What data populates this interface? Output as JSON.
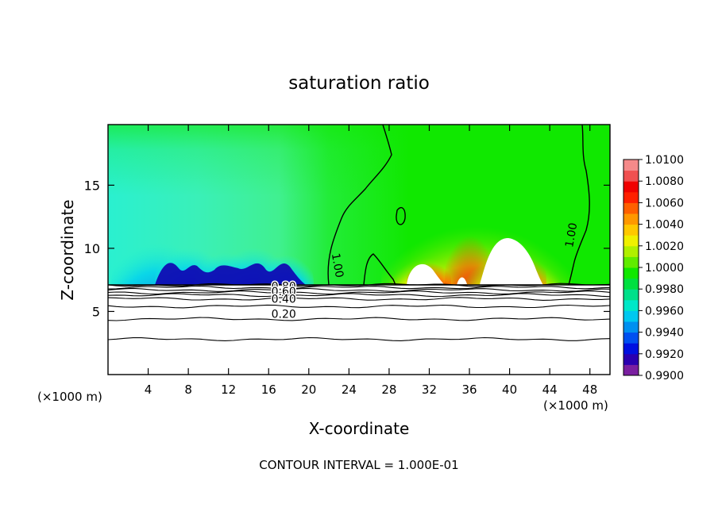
{
  "chart_data": {
    "type": "heatmap",
    "title": "saturation ratio",
    "xlabel": "X-coordinate",
    "ylabel": "Z-coordinate",
    "x_unit_left": "(×1000 m)",
    "x_unit_right": "(×1000 m)",
    "footer": "CONTOUR INTERVAL = 1.000E-01",
    "xlim": [
      0,
      50
    ],
    "ylim": [
      0,
      19.8
    ],
    "x_ticks": [
      4,
      8,
      12,
      16,
      20,
      24,
      28,
      32,
      36,
      40,
      44,
      48
    ],
    "y_ticks": [
      5,
      10,
      15
    ],
    "colorbar": {
      "range": [
        0.99,
        1.01
      ],
      "ticks": [
        "1.0100",
        "1.0080",
        "1.0060",
        "1.0040",
        "1.0020",
        "1.0000",
        "0.9980",
        "0.9960",
        "0.9940",
        "0.9920",
        "0.9900"
      ]
    },
    "contour_labels": [
      {
        "text": "1.00",
        "x": 22.5,
        "z": 8.6
      },
      {
        "text": "1.00",
        "x": 46.5,
        "z": 11.0
      },
      {
        "text": "0.80",
        "x": 17.5,
        "z": 6.7
      },
      {
        "text": "0.60",
        "x": 17.5,
        "z": 6.3
      },
      {
        "text": "0.40",
        "x": 17.5,
        "z": 5.7
      },
      {
        "text": "0.20",
        "x": 17.5,
        "z": 4.5
      }
    ],
    "lower_contour_levels": [
      {
        "z": 7.1
      },
      {
        "z": 6.9
      },
      {
        "z": 6.7
      },
      {
        "z": 6.5
      },
      {
        "z": 6.3
      },
      {
        "z": 6.0
      },
      {
        "z": 5.4
      },
      {
        "z": 4.4
      },
      {
        "z": 2.8
      }
    ]
  },
  "colors": {
    "level_colors": [
      "#7a1fa0",
      "#2a00b0",
      "#0010e0",
      "#0050f0",
      "#0090f0",
      "#00c8f0",
      "#00e8c8",
      "#00e08a",
      "#00e040",
      "#10e800",
      "#60ec00",
      "#b0f000",
      "#f0f000",
      "#ffc800",
      "#ff9800",
      "#ff6000",
      "#ff2000",
      "#f00000",
      "#f05050",
      "#f58a8a"
    ],
    "dry": "#00e8f0",
    "moist": "#00e84a"
  }
}
